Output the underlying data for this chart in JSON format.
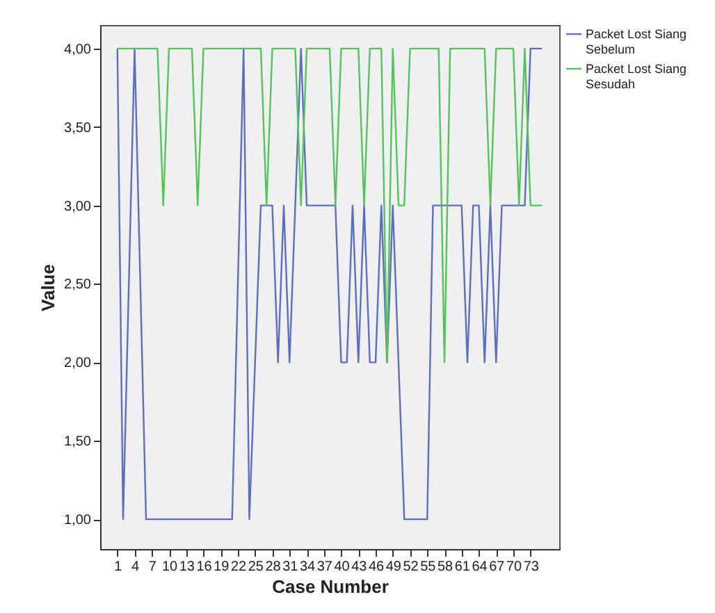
{
  "chart_data": {
    "type": "line",
    "xlabel": "Case Number",
    "ylabel": "Value",
    "xlim": [
      -2,
      78
    ],
    "xticks": [
      1,
      4,
      7,
      10,
      13,
      16,
      19,
      22,
      25,
      28,
      31,
      34,
      37,
      40,
      43,
      46,
      49,
      52,
      55,
      58,
      61,
      64,
      67,
      70,
      73
    ],
    "ylim": [
      0.81,
      4.15
    ],
    "yticks": [
      {
        "value": 1,
        "label": "1,00"
      },
      {
        "value": 1.5,
        "label": "1,50"
      },
      {
        "value": 2,
        "label": "2,00"
      },
      {
        "value": 2.5,
        "label": "2,50"
      },
      {
        "value": 3,
        "label": "3,00"
      },
      {
        "value": 3.5,
        "label": "3,50"
      },
      {
        "value": 4,
        "label": "4,00"
      }
    ],
    "grid": false,
    "legend": "top right",
    "series": [
      {
        "name": "Packet Lost Siang Sebelum",
        "color": "#5a6fc4",
        "x": [
          1,
          2,
          4,
          6,
          21,
          23,
          24,
          26,
          28,
          29,
          30,
          31,
          33,
          34,
          39,
          40,
          41,
          42,
          43,
          44,
          45,
          46,
          47,
          48,
          49,
          51,
          55,
          56,
          61,
          62,
          63,
          64,
          65,
          66,
          67,
          68,
          72,
          73,
          75
        ],
        "values": [
          4,
          1,
          4,
          1,
          1,
          4,
          1,
          3,
          3,
          2,
          3,
          2,
          4,
          3,
          3,
          2,
          2,
          3,
          2,
          3,
          2,
          2,
          3,
          2,
          3,
          1,
          1,
          3,
          3,
          2,
          3,
          3,
          2,
          3,
          2,
          3,
          3,
          4,
          4
        ]
      },
      {
        "name": "Packet Lost Siang Sesudah",
        "color": "#54c45a",
        "x": [
          1,
          8,
          9,
          10,
          14,
          15,
          16,
          26,
          27,
          28,
          32,
          33,
          34,
          38,
          39,
          40,
          43,
          44,
          45,
          47,
          48,
          49,
          50,
          51,
          52,
          57,
          58,
          59,
          65,
          66,
          67,
          70,
          71,
          72,
          73,
          75
        ],
        "values": [
          4,
          4,
          3,
          4,
          4,
          3,
          4,
          4,
          3,
          4,
          4,
          3,
          4,
          4,
          3,
          4,
          4,
          3,
          4,
          4,
          2,
          4,
          3,
          3,
          4,
          4,
          2,
          4,
          4,
          3,
          4,
          4,
          3,
          4,
          3,
          3
        ]
      }
    ]
  }
}
